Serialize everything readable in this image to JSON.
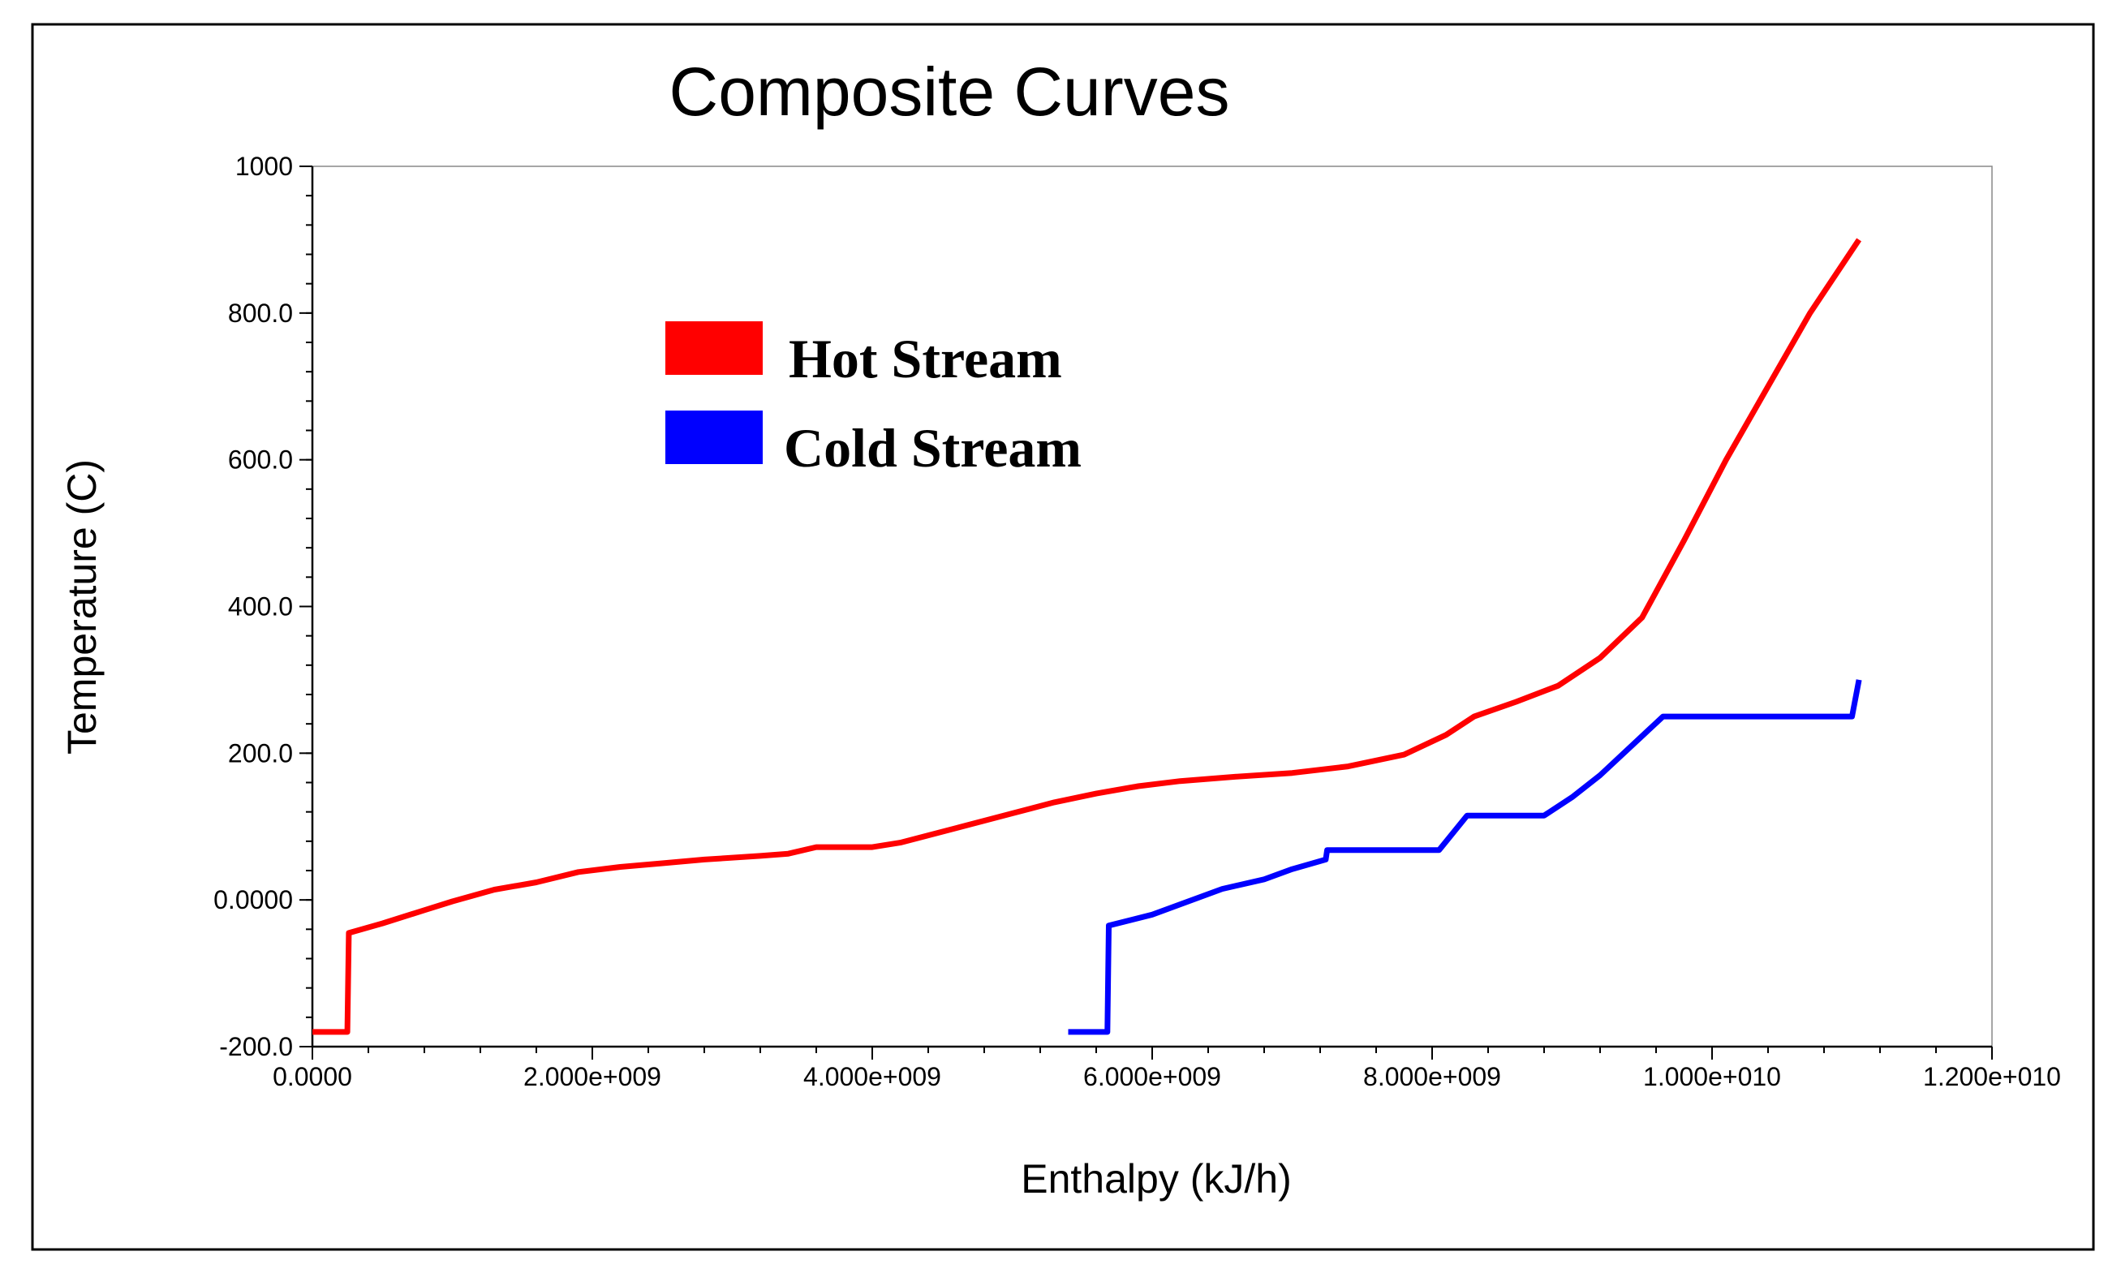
{
  "chart_data": {
    "type": "line",
    "title": "Composite Curves",
    "xlabel": "Enthalpy (kJ/h)",
    "ylabel": "Temperature (C)",
    "xlim": [
      0,
      12000000000
    ],
    "ylim": [
      -200,
      1000
    ],
    "x_ticks": [
      0,
      2000000000,
      4000000000,
      6000000000,
      8000000000,
      10000000000,
      12000000000
    ],
    "x_tick_labels": [
      "0.0000",
      "2.000e+009",
      "4.000e+009",
      "6.000e+009",
      "8.000e+009",
      "1.000e+010",
      "1.200e+010"
    ],
    "y_ticks": [
      -200,
      0,
      200,
      400,
      600,
      800,
      1000
    ],
    "y_tick_labels": [
      "-200.0",
      "0.0000",
      "200.0",
      "400.0",
      "600.0",
      "800.0",
      "1000"
    ],
    "x_minor_step": 400000000,
    "y_minor_step": 40,
    "legend_position": "top-left",
    "series": [
      {
        "name": "Hot Stream",
        "color": "#ff0000",
        "x": [
          0,
          250000000,
          260000000,
          500000000,
          800000000,
          1000000000,
          1300000000,
          1600000000,
          1900000000,
          2200000000,
          2500000000,
          2800000000,
          3200000000,
          3400000000,
          3600000000,
          4000000000,
          4200000000,
          4600000000,
          5000000000,
          5300000000,
          5600000000,
          5900000000,
          6200000000,
          6600000000,
          7000000000,
          7400000000,
          7800000000,
          8100000000,
          8300000000,
          8600000000,
          8900000000,
          9200000000,
          9500000000,
          9800000000,
          10100000000,
          10400000000,
          10700000000,
          11050000000
        ],
        "y": [
          -180,
          -180,
          -45,
          -32,
          -14,
          -2,
          14,
          24,
          38,
          45,
          50,
          55,
          60,
          63,
          72,
          72,
          78,
          98,
          118,
          133,
          145,
          155,
          162,
          168,
          173,
          182,
          198,
          225,
          250,
          270,
          292,
          330,
          385,
          490,
          600,
          700,
          800,
          900
        ]
      },
      {
        "name": "Cold Stream",
        "color": "#0000ff",
        "x": [
          5400000000,
          5680000000,
          5690000000,
          6000000000,
          6500000000,
          6800000000,
          7000000000,
          7240000000,
          7250000000,
          8050000000,
          8250000000,
          8800000000,
          9000000000,
          9200000000,
          9650000000,
          11000000000,
          11050000000
        ],
        "y": [
          -180,
          -180,
          -35,
          -20,
          15,
          28,
          42,
          55,
          68,
          68,
          115,
          115,
          140,
          170,
          250,
          250,
          300
        ]
      }
    ]
  }
}
